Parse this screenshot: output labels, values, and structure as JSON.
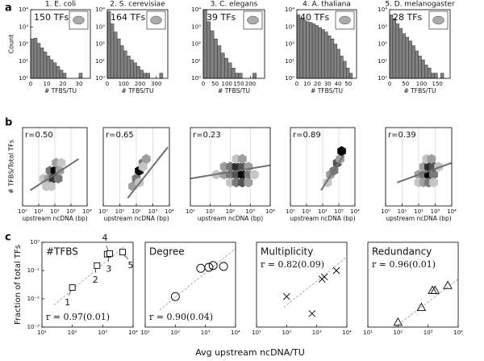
{
  "panel_labels": [
    "a",
    "b",
    "c"
  ],
  "chart_data": [
    {
      "type": "histogram",
      "title": "1. E. coli",
      "annotation": "150 TFs",
      "xlabel": "# TFBS/TU",
      "ylabel": "Count",
      "xscale": "linear",
      "yscale": "log",
      "bins": [
        0,
        2,
        4,
        6,
        8,
        10,
        12,
        14,
        16,
        18,
        20,
        22,
        24,
        26,
        28,
        30,
        32
      ],
      "values": [
        200,
        220,
        110,
        60,
        35,
        20,
        12,
        8,
        5,
        3,
        2,
        1,
        1,
        1,
        1,
        2
      ],
      "xlim": [
        0,
        37
      ],
      "xticks": [
        0,
        10,
        20,
        30
      ],
      "ylim": [
        1,
        10000
      ],
      "yticks": [
        {
          "value": 1,
          "label": "10⁰"
        },
        {
          "value": 10,
          "label": "10¹"
        },
        {
          "value": 100,
          "label": "10²"
        },
        {
          "value": 1000,
          "label": "10³"
        },
        {
          "value": 10000,
          "label": "10⁴"
        }
      ],
      "color": "#808080"
    },
    {
      "type": "histogram",
      "title": "2. S. cerevisiae",
      "annotation": "164 TFs",
      "xlabel": "# TFBS/TU",
      "xscale": "linear",
      "yscale": "log",
      "bins": [
        0,
        20,
        40,
        60,
        80,
        100,
        120,
        140,
        160,
        180,
        200,
        220,
        240,
        260,
        280,
        300,
        320,
        340
      ],
      "values": [
        8000,
        1500,
        500,
        200,
        80,
        40,
        20,
        12,
        8,
        5,
        3,
        2,
        2,
        1,
        1,
        1,
        2
      ],
      "xlim": [
        0,
        370
      ],
      "xticks": [
        0,
        100,
        200,
        300
      ],
      "ylim": [
        1,
        10000
      ],
      "yticks": [
        {
          "value": 1,
          "label": "10⁰"
        },
        {
          "value": 10,
          "label": "10¹"
        },
        {
          "value": 100,
          "label": "10²"
        },
        {
          "value": 1000,
          "label": "10³"
        },
        {
          "value": 10000,
          "label": "10⁴"
        }
      ],
      "color": "#808080"
    },
    {
      "type": "histogram",
      "title": "3. C. elegans",
      "annotation": "39 TFs",
      "xlabel": "# TFBS/TU",
      "xscale": "linear",
      "yscale": "log",
      "bins": [
        0,
        15,
        30,
        45,
        60,
        75,
        90,
        105,
        120,
        135,
        150,
        165,
        180,
        195,
        210,
        225
      ],
      "values": [
        10000,
        2000,
        600,
        200,
        80,
        30,
        15,
        8,
        4,
        2,
        2,
        1,
        1,
        1,
        2
      ],
      "xlim": [
        0,
        260
      ],
      "xticks": [
        0,
        50,
        100,
        150,
        200
      ],
      "ylim": [
        1,
        10000
      ],
      "yticks": [
        {
          "value": 1,
          "label": "10⁰"
        },
        {
          "value": 10,
          "label": "10¹"
        },
        {
          "value": 100,
          "label": "10²"
        },
        {
          "value": 1000,
          "label": "10³"
        },
        {
          "value": 10000,
          "label": "10⁴"
        }
      ],
      "color": "#808080"
    },
    {
      "type": "histogram",
      "title": "4. A. thaliana",
      "annotation": "40 TFs",
      "xlabel": "# TFBS/TU",
      "xscale": "linear",
      "yscale": "log",
      "bins": [
        0,
        3,
        6,
        9,
        12,
        15,
        18,
        21,
        24,
        27,
        30,
        33,
        36,
        39,
        42,
        45,
        48,
        51,
        54
      ],
      "values": [
        5000,
        3000,
        2500,
        2000,
        1800,
        1500,
        1200,
        900,
        700,
        500,
        300,
        200,
        100,
        50,
        20,
        10,
        4,
        2
      ],
      "xlim": [
        0,
        58
      ],
      "xticks": [
        0,
        10,
        20,
        30,
        40,
        50
      ],
      "ylim": [
        1,
        10000
      ],
      "yticks": [
        {
          "value": 1,
          "label": "10⁰"
        },
        {
          "value": 10,
          "label": "10¹"
        },
        {
          "value": 100,
          "label": "10²"
        },
        {
          "value": 1000,
          "label": "10³"
        },
        {
          "value": 10000,
          "label": "10⁴"
        }
      ],
      "color": "#808080"
    },
    {
      "type": "histogram",
      "title": "5. D. melanogaster",
      "annotation": "28 TFs",
      "xlabel": "# TFBS/TU",
      "xscale": "linear",
      "yscale": "log",
      "bins": [
        0,
        10,
        20,
        30,
        40,
        50,
        60,
        70,
        80,
        90,
        100,
        110,
        120,
        130,
        140,
        150,
        160,
        170
      ],
      "values": [
        5000,
        3000,
        1500,
        800,
        400,
        250,
        150,
        80,
        40,
        20,
        12,
        6,
        4,
        2,
        2,
        1,
        2
      ],
      "xlim": [
        0,
        190
      ],
      "xticks": [
        0,
        50,
        100,
        150
      ],
      "ylim": [
        1,
        10000
      ],
      "yticks": [
        {
          "value": 1,
          "label": "10⁰"
        },
        {
          "value": 10,
          "label": "10¹"
        },
        {
          "value": 100,
          "label": "10²"
        },
        {
          "value": 1000,
          "label": "10³"
        },
        {
          "value": 10000,
          "label": "10⁴"
        }
      ],
      "color": "#808080"
    },
    {
      "type": "hexbin",
      "annotation": "r=0.50",
      "xlabel": "upstream ncDNA (bp)",
      "ylabel": "# TFBS/Total TFs",
      "xscale": "log",
      "yscale": "linear",
      "grid": true,
      "x": [
        20,
        40,
        80,
        160,
        50,
        100,
        200,
        30,
        60,
        120,
        250
      ],
      "y": [
        0.35,
        0.35,
        0.35,
        0.35,
        0.45,
        0.45,
        0.45,
        0.25,
        0.25,
        0.55,
        0.55
      ],
      "counts": [
        1,
        2,
        5,
        3,
        3,
        6,
        2,
        1,
        1,
        2,
        1
      ],
      "fit": {
        "x": [
          3,
          3000
        ],
        "y": [
          0.2,
          0.6
        ]
      },
      "xlim": [
        1,
        10000
      ],
      "ylim": [
        0,
        1
      ],
      "xticks": [
        {
          "value": 1,
          "label": "10⁰"
        },
        {
          "value": 10,
          "label": "10¹"
        },
        {
          "value": 100,
          "label": "10²"
        },
        {
          "value": 1000,
          "label": "10³"
        },
        {
          "value": 10000,
          "label": "10⁴"
        }
      ],
      "color": "#707070"
    },
    {
      "type": "hexbin",
      "annotation": "r=0.65",
      "xlabel": "upstream ncDNA (bp)",
      "xscale": "log",
      "yscale": "linear",
      "grid": true,
      "x": [
        60,
        100,
        150,
        250,
        400,
        150,
        250
      ],
      "y": [
        0.25,
        0.35,
        0.45,
        0.55,
        0.6,
        0.3,
        0.5
      ],
      "counts": [
        2,
        3,
        6,
        3,
        2,
        1,
        1
      ],
      "fit": {
        "x": [
          30,
          8000
        ],
        "y": [
          0.1,
          0.75
        ]
      },
      "xlim": [
        1,
        10000
      ],
      "ylim": [
        0,
        1
      ],
      "xticks": [
        {
          "value": 1,
          "label": "10⁰"
        },
        {
          "value": 10,
          "label": "10¹"
        },
        {
          "value": 100,
          "label": "10²"
        },
        {
          "value": 1000,
          "label": "10³"
        },
        {
          "value": 10000,
          "label": "10⁴"
        }
      ],
      "color": "#707070"
    },
    {
      "type": "hexbin",
      "annotation": "r=0.23",
      "xlabel": "upstream ncDNA (bp)",
      "xscale": "log",
      "yscale": "linear",
      "grid": true,
      "x": [
        20,
        50,
        100,
        200,
        400,
        800,
        1600,
        50,
        100,
        200,
        400,
        800,
        100,
        200,
        400,
        800,
        200,
        400
      ],
      "y": [
        0.4,
        0.4,
        0.4,
        0.4,
        0.4,
        0.4,
        0.4,
        0.5,
        0.5,
        0.5,
        0.5,
        0.5,
        0.3,
        0.3,
        0.3,
        0.3,
        0.6,
        0.6
      ],
      "counts": [
        1,
        2,
        3,
        4,
        6,
        3,
        1,
        2,
        3,
        5,
        4,
        2,
        1,
        3,
        4,
        2,
        1,
        2
      ],
      "fit": {
        "x": [
          1,
          10000
        ],
        "y": [
          0.35,
          0.52
        ]
      },
      "xlim": [
        1,
        10000
      ],
      "ylim": [
        0,
        1
      ],
      "xticks": [
        {
          "value": 1,
          "label": "10⁰"
        },
        {
          "value": 10,
          "label": "10¹"
        },
        {
          "value": 100,
          "label": "10²"
        },
        {
          "value": 1000,
          "label": "10³"
        },
        {
          "value": 10000,
          "label": "10⁴"
        }
      ],
      "color": "#707070"
    },
    {
      "type": "hexbin",
      "annotation": "r=0.89",
      "xlabel": "upstream ncDNA (bp)",
      "xscale": "log",
      "yscale": "linear",
      "grid": true,
      "x": [
        200,
        300,
        500,
        800,
        1200,
        1500
      ],
      "y": [
        0.3,
        0.4,
        0.45,
        0.55,
        0.6,
        0.7
      ],
      "counts": [
        1,
        2,
        3,
        4,
        2,
        6
      ],
      "fit": {
        "x": [
          80,
          2000
        ],
        "y": [
          0.2,
          0.65
        ]
      },
      "xlim": [
        1,
        10000
      ],
      "ylim": [
        0,
        1
      ],
      "xticks": [
        {
          "value": 1,
          "label": "10⁰"
        },
        {
          "value": 10,
          "label": "10¹"
        },
        {
          "value": 100,
          "label": "10²"
        },
        {
          "value": 1000,
          "label": "10³"
        },
        {
          "value": 10000,
          "label": "10⁴"
        }
      ],
      "color": "#707070"
    },
    {
      "type": "hexbin",
      "annotation": "r=0.39",
      "xlabel": "upstream ncDNA (bp)",
      "xscale": "log",
      "yscale": "linear",
      "grid": true,
      "x": [
        100,
        200,
        400,
        800,
        200,
        400,
        800,
        1600,
        100,
        200,
        400,
        800,
        300,
        600
      ],
      "y": [
        0.4,
        0.4,
        0.4,
        0.4,
        0.5,
        0.5,
        0.5,
        0.5,
        0.3,
        0.3,
        0.3,
        0.3,
        0.6,
        0.6
      ],
      "counts": [
        2,
        3,
        6,
        3,
        2,
        5,
        4,
        1,
        1,
        2,
        3,
        1,
        1,
        2
      ],
      "fit": {
        "x": [
          5,
          10000
        ],
        "y": [
          0.3,
          0.55
        ]
      },
      "xlim": [
        1,
        10000
      ],
      "ylim": [
        0,
        1
      ],
      "xticks": [
        {
          "value": 1,
          "label": "10⁰"
        },
        {
          "value": 10,
          "label": "10¹"
        },
        {
          "value": 100,
          "label": "10²"
        },
        {
          "value": 1000,
          "label": "10³"
        },
        {
          "value": 10000,
          "label": "10⁴"
        }
      ],
      "color": "#707070"
    },
    {
      "type": "scatter",
      "title": "#TFBS",
      "annotation": "r = 0.97(0.01)",
      "marker": "square",
      "xlabel": "Avg upstream ncDNA/TU",
      "ylabel": "Fraction of total TFs",
      "xscale": "log",
      "yscale": "log",
      "x": [
        100,
        650,
        1400,
        1700,
        4500
      ],
      "values": [
        0.025,
        0.15,
        0.38,
        0.4,
        0.45
      ],
      "point_labels": [
        "1",
        "2",
        "3",
        "4",
        "5"
      ],
      "fit": {
        "x": [
          25,
          5000
        ],
        "y": [
          0.006,
          0.7
        ]
      },
      "xlim": [
        10,
        10000
      ],
      "ylim": [
        0.001,
        1
      ],
      "xticks": [
        {
          "value": 10,
          "label": "10¹"
        },
        {
          "value": 100,
          "label": "10²"
        },
        {
          "value": 1000,
          "label": "10³"
        },
        {
          "value": 10000,
          "label": "10⁴"
        }
      ],
      "yticks": [
        {
          "value": 0.001,
          "label": "10⁻³"
        },
        {
          "value": 0.01,
          "label": "10⁻²"
        },
        {
          "value": 0.1,
          "label": "10⁻¹"
        },
        {
          "value": 1,
          "label": "10⁰"
        }
      ],
      "color": "#000000"
    },
    {
      "type": "scatter",
      "title": "Degree",
      "annotation": "r = 0.90(0.04)",
      "marker": "circle",
      "xscale": "log",
      "yscale": "log",
      "x": [
        100,
        700,
        1300,
        1800,
        4000
      ],
      "values": [
        0.012,
        0.12,
        0.13,
        0.15,
        0.14
      ],
      "fit": {
        "x": [
          30,
          10000
        ],
        "y": [
          0.004,
          0.6
        ]
      },
      "xlim": [
        10,
        10000
      ],
      "ylim": [
        0.001,
        1
      ],
      "xticks": [
        {
          "value": 10,
          "label": "10¹"
        },
        {
          "value": 100,
          "label": "10²"
        },
        {
          "value": 1000,
          "label": "10³"
        },
        {
          "value": 10000,
          "label": "10⁴"
        }
      ],
      "color": "#000000"
    },
    {
      "type": "scatter",
      "title": "Multiplicity",
      "annotation": "r = 0.82(0.09)",
      "marker": "x",
      "xscale": "log",
      "yscale": "log",
      "x": [
        100,
        700,
        1500,
        1800,
        4500
      ],
      "values": [
        0.012,
        0.003,
        0.05,
        0.06,
        0.1
      ],
      "fit": {
        "x": [
          80,
          10000
        ],
        "y": [
          0.005,
          0.3
        ]
      },
      "xlim": [
        10,
        10000
      ],
      "ylim": [
        0.001,
        1
      ],
      "xticks": [
        {
          "value": 10,
          "label": "10¹"
        },
        {
          "value": 100,
          "label": "10²"
        },
        {
          "value": 1000,
          "label": "10³"
        },
        {
          "value": 10000,
          "label": "10⁴"
        }
      ],
      "color": "#000000"
    },
    {
      "type": "scatter",
      "title": "Redundancy",
      "annotation": "r = 0.96(0.01)",
      "marker": "triangle",
      "xscale": "log",
      "yscale": "log",
      "x": [
        100,
        600,
        1400,
        1700,
        4500
      ],
      "values": [
        0.0015,
        0.005,
        0.02,
        0.02,
        0.03
      ],
      "fit": {
        "x": [
          80,
          10000
        ],
        "y": [
          0.001,
          0.05
        ]
      },
      "xlim": [
        10,
        10000
      ],
      "ylim": [
        0.001,
        1
      ],
      "xticks": [
        {
          "value": 10,
          "label": "10¹"
        },
        {
          "value": 100,
          "label": "10²"
        },
        {
          "value": 1000,
          "label": "10³"
        },
        {
          "value": 10000,
          "label": "10⁴"
        }
      ],
      "color": "#000000"
    }
  ]
}
